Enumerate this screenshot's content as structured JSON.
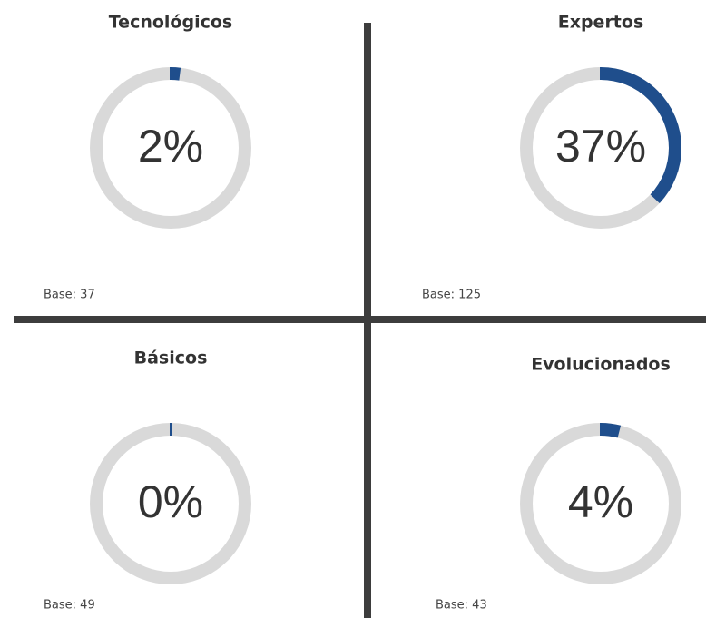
{
  "chart_data": [
    {
      "type": "donut",
      "title": "Tecnológicos",
      "values": [
        2
      ],
      "value_labels": [
        "2%"
      ],
      "note": "Base: 37",
      "color": "#1f4e8c"
    },
    {
      "type": "donut",
      "title": "Expertos",
      "values": [
        37
      ],
      "value_labels": [
        "37%"
      ],
      "note": "Base: 125",
      "color": "#1f4e8c"
    },
    {
      "type": "donut",
      "title": "Básicos",
      "values": [
        0
      ],
      "value_labels": [
        "0%"
      ],
      "note": "Base: 49",
      "color": "#1f4e8c"
    },
    {
      "type": "donut",
      "title": "Evolucionados",
      "values": [
        4
      ],
      "value_labels": [
        "4%"
      ],
      "note": "Base: 43",
      "color": "#1f4e8c"
    }
  ]
}
